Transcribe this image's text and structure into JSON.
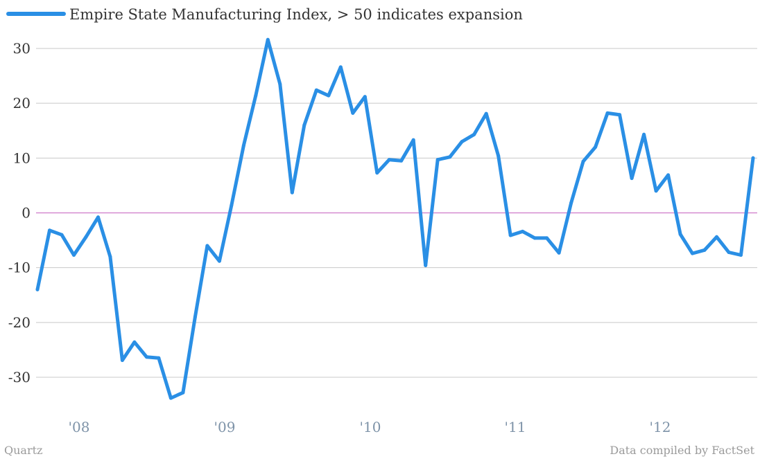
{
  "chart_data": {
    "type": "line",
    "series": [
      {
        "name": "Empire State Manufacturing Index, > 50 indicates expansion",
        "values": [
          -14.0,
          -3.2,
          -4.0,
          -7.7,
          -4.4,
          -0.8,
          -8.0,
          -26.9,
          -23.6,
          -26.3,
          -26.5,
          -33.8,
          -32.8,
          -19.0,
          -6.0,
          -8.8,
          1.4,
          12.3,
          21.4,
          31.6,
          23.5,
          3.7,
          16.0,
          22.4,
          21.4,
          26.6,
          18.2,
          21.2,
          7.3,
          9.7,
          9.5,
          13.3,
          -9.6,
          9.7,
          10.2,
          13.0,
          14.3,
          18.1,
          10.4,
          -4.1,
          -3.4,
          -4.6,
          -4.6,
          -7.3,
          1.8,
          9.4,
          12.0,
          18.2,
          17.9,
          6.3,
          14.3,
          4.0,
          6.9,
          -3.9,
          -7.4,
          -6.8,
          -4.4,
          -7.2,
          -7.7,
          10.0
        ]
      }
    ],
    "x_tick_labels": [
      "'08",
      "'09",
      "'10",
      "'11",
      "'12"
    ],
    "y_ticks": [
      30,
      20,
      10,
      0,
      -10,
      -20,
      -30
    ],
    "ylim": [
      -36,
      34
    ],
    "grid": true,
    "zero_line": true,
    "legend_position": "top-left",
    "colors": {
      "line": "#2a8fe5",
      "grid": "#c8c8c8",
      "zero_line": "#d58ad0"
    }
  },
  "footer": {
    "source": "Quartz",
    "credit": "Data compiled by FactSet"
  }
}
